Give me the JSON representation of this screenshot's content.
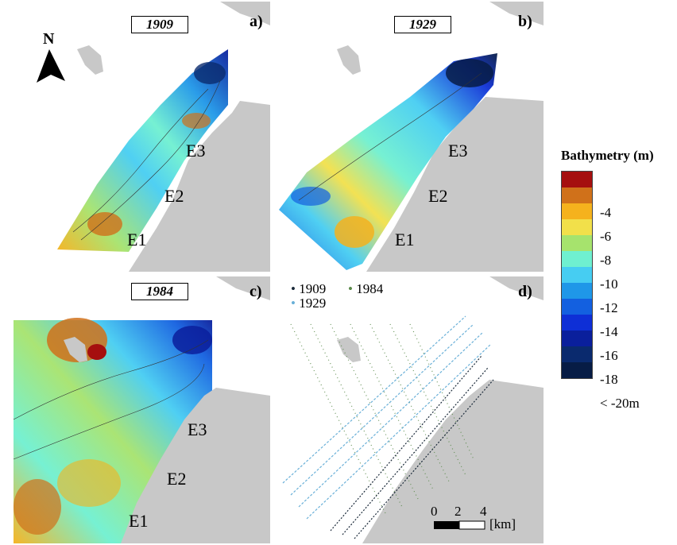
{
  "panels": [
    {
      "year": "1909",
      "letter": "a)"
    },
    {
      "year": "1929",
      "letter": "b)"
    },
    {
      "year": "1984",
      "letter": "c)"
    },
    {
      "year": "",
      "letter": "d)"
    }
  ],
  "north_label": "N",
  "sites": [
    "E1",
    "E2",
    "E3"
  ],
  "legend": {
    "title": "Bathymetry (m)",
    "labels": [
      "-4",
      "-6",
      "-8",
      "-10",
      "-12",
      "-14",
      "-16",
      "-18",
      "< -20m"
    ],
    "colors": [
      "#a50f0f",
      "#d0711a",
      "#f5b21d",
      "#f2e04a",
      "#a6e36d",
      "#6ff0d0",
      "#46cdf2",
      "#1f97e8",
      "#1360e0",
      "#0e2fd6",
      "#0a1f9c",
      "#0a2a6e",
      "#071c45"
    ]
  },
  "surveys": {
    "items": [
      {
        "year": "1909",
        "symbol": "•",
        "color": "#1b2a3a"
      },
      {
        "year": "1984",
        "symbol": "•",
        "color": "#5a8a4a"
      },
      {
        "year": "1929",
        "symbol": "•",
        "color": "#6ab0d8"
      }
    ]
  },
  "scale": {
    "ticks": [
      "0",
      "2",
      "4"
    ],
    "unit": "[km]"
  },
  "colors": {
    "land": "#c8c8c8",
    "coast_outline": "#ffffff"
  }
}
